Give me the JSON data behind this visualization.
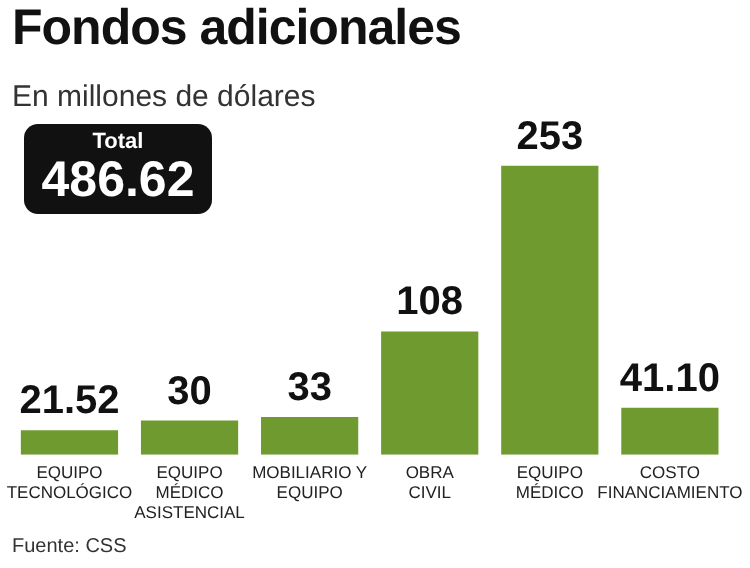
{
  "chart_data": {
    "type": "bar",
    "title": "Fondos adicionales",
    "subtitle": "En millones de dólares",
    "categories": [
      "EQUIPO\nTECNOLÓGICO",
      "EQUIPO\nMÉDICO\nASISTENCIAL",
      "MOBILIARIO Y\nEQUIPO",
      "OBRA\nCIVIL",
      "EQUIPO\nMÉDICO",
      "COSTO\nFINANCIAMIENTO"
    ],
    "values": [
      21.52,
      30,
      33,
      108,
      253,
      41.1
    ],
    "value_labels": [
      "21.52",
      "30",
      "33",
      "108",
      "253",
      "41.10"
    ],
    "color": "#6f9a2f",
    "annotations": [
      "Total",
      "486.62",
      "Fuente: CSS"
    ],
    "grid": false,
    "legend": false
  }
}
